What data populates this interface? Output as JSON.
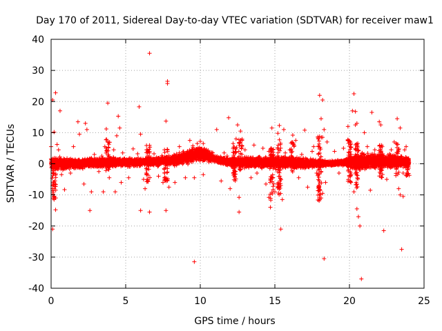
{
  "chart_data": {
    "type": "scatter",
    "title": "Day 170 of 2011, Sidereal Day-to-day VTEC variation (SDTVAR) for receiver maw1",
    "xlabel": "GPS time / hours",
    "ylabel": "SDTVAR / TECUs",
    "xlim": [
      0,
      25
    ],
    "ylim": [
      -40,
      40
    ],
    "xticks": [
      0,
      5,
      10,
      15,
      20,
      25
    ],
    "yticks": [
      -40,
      -30,
      -20,
      -10,
      0,
      10,
      20,
      30,
      40
    ],
    "grid": true,
    "marker": "+",
    "color": "#ff0000",
    "series": [
      {
        "name": "SDTVAR",
        "points": [
          [
            0.1,
            20.5
          ],
          [
            0.3,
            22.8
          ],
          [
            0.2,
            10.2
          ],
          [
            0.0,
            5.5
          ],
          [
            0.4,
            6.2
          ],
          [
            0.1,
            -8.0
          ],
          [
            0.2,
            -11.5
          ],
          [
            0.3,
            -14.8
          ],
          [
            0.1,
            -21.0
          ],
          [
            0.6,
            17.0
          ],
          [
            0.5,
            4.5
          ],
          [
            0.7,
            -3.5
          ],
          [
            0.9,
            -8.3
          ],
          [
            1.3,
            -3.0
          ],
          [
            1.8,
            13.5
          ],
          [
            2.3,
            13.0
          ],
          [
            2.4,
            11.0
          ],
          [
            1.9,
            9.5
          ],
          [
            2.6,
            -15.0
          ],
          [
            2.7,
            -9.0
          ],
          [
            2.2,
            -6.5
          ],
          [
            1.5,
            5.5
          ],
          [
            2.9,
            3.0
          ],
          [
            3.2,
            -2.5
          ],
          [
            3.5,
            -9.0
          ],
          [
            3.8,
            19.5
          ],
          [
            3.7,
            11.2
          ],
          [
            3.8,
            7.0
          ],
          [
            3.6,
            5.5
          ],
          [
            3.9,
            -4.5
          ],
          [
            3.4,
            2.5
          ],
          [
            4.5,
            15.3
          ],
          [
            4.6,
            11.5
          ],
          [
            4.4,
            9.0
          ],
          [
            4.2,
            4.5
          ],
          [
            4.7,
            -6.0
          ],
          [
            4.3,
            -9.0
          ],
          [
            4.8,
            3.5
          ],
          [
            5.2,
            -4.5
          ],
          [
            5.5,
            4.8
          ],
          [
            5.8,
            3.2
          ],
          [
            5.9,
            18.3
          ],
          [
            6.0,
            9.5
          ],
          [
            6.2,
            -5.0
          ],
          [
            6.3,
            -8.0
          ],
          [
            6.0,
            -15.0
          ],
          [
            6.6,
            35.5
          ],
          [
            6.6,
            -15.5
          ],
          [
            6.9,
            3.2
          ],
          [
            6.4,
            4.5
          ],
          [
            7.2,
            -4.0
          ],
          [
            7.5,
            -6.0
          ],
          [
            7.7,
            -15.0
          ],
          [
            7.8,
            26.5
          ],
          [
            7.8,
            25.8
          ],
          [
            7.7,
            13.7
          ],
          [
            7.9,
            -7.5
          ],
          [
            7.6,
            4.5
          ],
          [
            8.3,
            -6.0
          ],
          [
            8.6,
            5.5
          ],
          [
            8.8,
            3.0
          ],
          [
            9.0,
            -4.5
          ],
          [
            9.3,
            7.5
          ],
          [
            9.6,
            -31.5
          ],
          [
            9.6,
            -4.5
          ],
          [
            9.5,
            5.8
          ],
          [
            9.8,
            6.5
          ],
          [
            10.0,
            7.2
          ],
          [
            10.2,
            6.5
          ],
          [
            10.4,
            4.5
          ],
          [
            10.2,
            -3.5
          ],
          [
            10.8,
            3.0
          ],
          [
            11.1,
            11.0
          ],
          [
            11.4,
            -5.5
          ],
          [
            11.6,
            3.5
          ],
          [
            11.8,
            2.5
          ],
          [
            11.9,
            14.8
          ],
          [
            12.0,
            -8.0
          ],
          [
            12.2,
            6.5
          ],
          [
            12.4,
            8.0
          ],
          [
            12.5,
            12.5
          ],
          [
            12.6,
            -15.5
          ],
          [
            12.7,
            10.5
          ],
          [
            12.8,
            7.5
          ],
          [
            12.6,
            -10.8
          ],
          [
            13.0,
            4.5
          ],
          [
            13.4,
            -4.5
          ],
          [
            13.6,
            6.0
          ],
          [
            13.8,
            -3.0
          ],
          [
            14.2,
            5.0
          ],
          [
            14.4,
            -6.5
          ],
          [
            14.6,
            -10.8
          ],
          [
            14.7,
            -14.0
          ],
          [
            14.8,
            11.5
          ],
          [
            14.6,
            4.0
          ],
          [
            15.0,
            -9.0
          ],
          [
            15.2,
            9.8
          ],
          [
            15.3,
            12.3
          ],
          [
            15.4,
            -21.0
          ],
          [
            15.5,
            -11.5
          ],
          [
            15.6,
            11.0
          ],
          [
            15.3,
            -7.0
          ],
          [
            15.7,
            3.5
          ],
          [
            16.0,
            4.5
          ],
          [
            16.2,
            9.2
          ],
          [
            16.4,
            7.5
          ],
          [
            16.6,
            -4.5
          ],
          [
            16.8,
            3.0
          ],
          [
            17.0,
            10.8
          ],
          [
            17.2,
            -7.5
          ],
          [
            17.5,
            4.0
          ],
          [
            17.8,
            -3.0
          ],
          [
            17.6,
            5.5
          ],
          [
            18.0,
            22.0
          ],
          [
            18.2,
            20.5
          ],
          [
            18.1,
            14.5
          ],
          [
            18.2,
            8.5
          ],
          [
            18.3,
            11.0
          ],
          [
            18.1,
            -11.0
          ],
          [
            18.2,
            -9.5
          ],
          [
            18.3,
            -30.5
          ],
          [
            18.5,
            7.0
          ],
          [
            18.4,
            -6.0
          ],
          [
            19.0,
            4.0
          ],
          [
            19.3,
            -3.0
          ],
          [
            19.6,
            5.0
          ],
          [
            19.9,
            7.5
          ],
          [
            19.9,
            12.0
          ],
          [
            20.2,
            17.0
          ],
          [
            20.3,
            22.5
          ],
          [
            20.4,
            16.8
          ],
          [
            20.5,
            13.0
          ],
          [
            20.4,
            12.5
          ],
          [
            20.5,
            -14.5
          ],
          [
            20.6,
            -17.0
          ],
          [
            20.7,
            -20.0
          ],
          [
            20.8,
            -37.0
          ],
          [
            20.3,
            -9.0
          ],
          [
            20.1,
            -6.0
          ],
          [
            21.0,
            10.0
          ],
          [
            21.2,
            5.5
          ],
          [
            21.5,
            16.5
          ],
          [
            21.4,
            -8.5
          ],
          [
            21.7,
            4.5
          ],
          [
            22.0,
            13.5
          ],
          [
            22.1,
            12.5
          ],
          [
            22.2,
            5.5
          ],
          [
            22.3,
            -21.5
          ],
          [
            22.5,
            -5.0
          ],
          [
            22.8,
            4.5
          ],
          [
            23.0,
            7.0
          ],
          [
            23.2,
            14.5
          ],
          [
            23.4,
            11.5
          ],
          [
            23.3,
            -8.0
          ],
          [
            23.4,
            -10.0
          ],
          [
            23.5,
            -27.5
          ],
          [
            23.6,
            -10.5
          ],
          [
            23.7,
            4.5
          ],
          [
            23.8,
            5.5
          ],
          [
            23.6,
            -3.0
          ]
        ]
      }
    ],
    "dense_band": {
      "description": "dense cluster of points around zero across full day",
      "x_start": 0,
      "x_end": 24,
      "center_y": [
        [
          0,
          0.0
        ],
        [
          2,
          0.0
        ],
        [
          4,
          0.5
        ],
        [
          6,
          0.5
        ],
        [
          8,
          1.0
        ],
        [
          9,
          2.0
        ],
        [
          10,
          3.5
        ],
        [
          11,
          1.5
        ],
        [
          12,
          0.5
        ],
        [
          14,
          0.5
        ],
        [
          16,
          0.5
        ],
        [
          18,
          0.0
        ],
        [
          20,
          0.5
        ],
        [
          22,
          1.0
        ],
        [
          24,
          0.5
        ]
      ],
      "half_width": [
        [
          0,
          3.0
        ],
        [
          1,
          2.0
        ],
        [
          4,
          2.0
        ],
        [
          6,
          1.5
        ],
        [
          8,
          2.0
        ],
        [
          9.5,
          3.0
        ],
        [
          10,
          3.5
        ],
        [
          11,
          1.5
        ],
        [
          13,
          2.0
        ],
        [
          15,
          2.5
        ],
        [
          17,
          2.0
        ],
        [
          18.5,
          1.0
        ],
        [
          19.5,
          1.0
        ],
        [
          20.5,
          3.5
        ],
        [
          22,
          3.0
        ],
        [
          24,
          2.0
        ]
      ],
      "spikes": [
        [
          0.2,
          -12,
          0
        ],
        [
          3.8,
          -3,
          8
        ],
        [
          6.5,
          -6,
          6
        ],
        [
          7.7,
          -6,
          5
        ],
        [
          12.3,
          -6,
          6
        ],
        [
          12.7,
          -2,
          8
        ],
        [
          14.8,
          -12,
          5
        ],
        [
          15.3,
          -10,
          8
        ],
        [
          16.2,
          -3,
          7
        ],
        [
          18.0,
          -12,
          9
        ],
        [
          20.0,
          -6,
          8
        ],
        [
          20.5,
          -8,
          7
        ],
        [
          22.1,
          -5,
          8
        ],
        [
          23.2,
          -4,
          7
        ],
        [
          23.9,
          -4,
          4
        ]
      ]
    }
  }
}
